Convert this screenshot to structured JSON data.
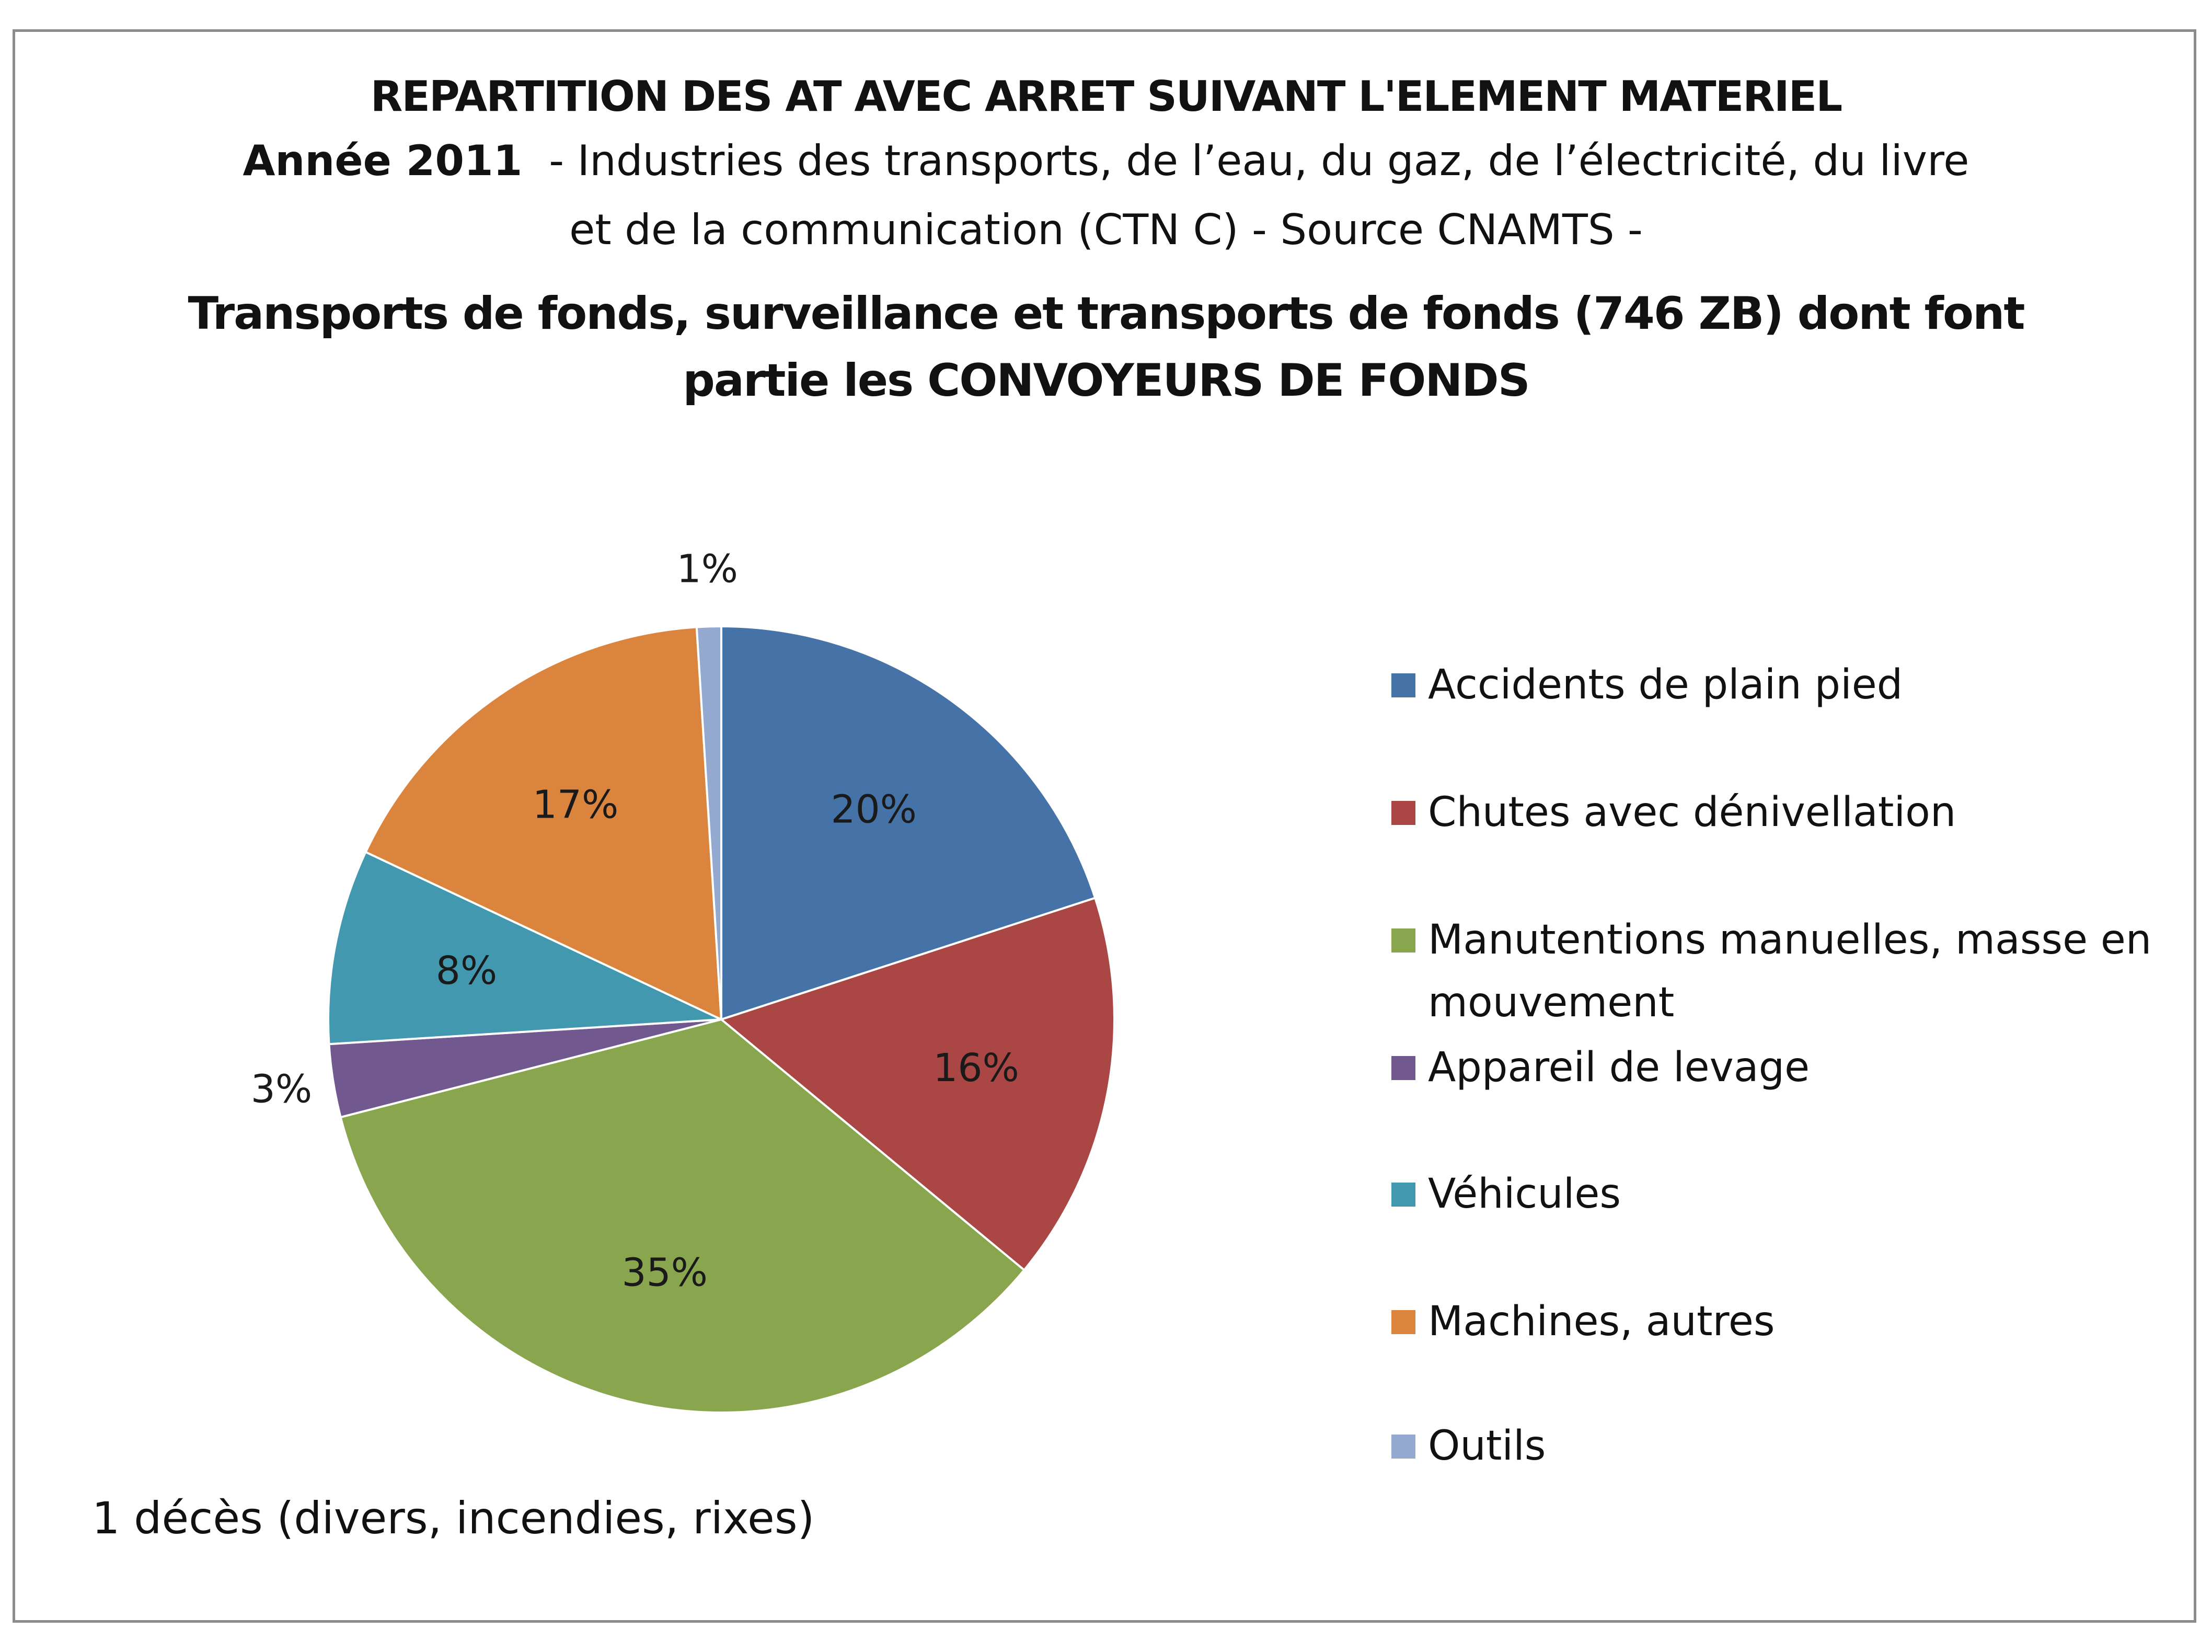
{
  "title": {
    "line1": "REPARTITION DES AT AVEC ARRET SUIVANT L'ELEMENT MATERIEL",
    "line2_bold": "Année 2011",
    "line2_rest": "  - Industries des transports, de l’eau, du gaz, de l’électricité, du livre",
    "line3": "et de la communication (CTN C) -  Source CNAMTS -",
    "subtitle1": "Transports de fonds, surveillance et transports de fonds (746 ZB) dont font",
    "subtitle2": "partie les CONVOYEURS DE FONDS"
  },
  "chart_data": {
    "type": "pie",
    "slices": [
      {
        "label": "Accidents de plain pied",
        "value": 20,
        "display": "20%",
        "color": "#4572A7"
      },
      {
        "label": "Chutes avec dénivellation",
        "value": 16,
        "display": "16%",
        "color": "#AA4643"
      },
      {
        "label": "Manutentions manuelles, masse en mouvement",
        "value": 35,
        "display": "35%",
        "color": "#89A54E"
      },
      {
        "label": "Appareil de levage",
        "value": 3,
        "display": "3%",
        "color": "#71588F"
      },
      {
        "label": "Véhicules",
        "value": 8,
        "display": "8%",
        "color": "#4198AF"
      },
      {
        "label": "Machines, autres",
        "value": 17,
        "display": "17%",
        "color": "#DB843D"
      },
      {
        "label": "Outils",
        "value": 1,
        "display": "1%",
        "color": "#93A9CF"
      }
    ],
    "legend_position": "right"
  },
  "legend": {
    "items": [
      {
        "line1": "Accidents de plain pied",
        "line2": "",
        "color": "#4572A7"
      },
      {
        "line1": "Chutes avec dénivellation",
        "line2": "",
        "color": "#AA4643"
      },
      {
        "line1": "Manutentions manuelles, masse en",
        "line2": "mouvement",
        "color": "#89A54E"
      },
      {
        "line1": "Appareil de levage",
        "line2": "",
        "color": "#71588F"
      },
      {
        "line1": "Véhicules",
        "line2": "",
        "color": "#4198AF"
      },
      {
        "line1": "Machines, autres",
        "line2": "",
        "color": "#DB843D"
      },
      {
        "line1": "Outils",
        "line2": "",
        "color": "#93A9CF"
      }
    ]
  },
  "footnote": "1 décès (divers, incendies, rixes)"
}
